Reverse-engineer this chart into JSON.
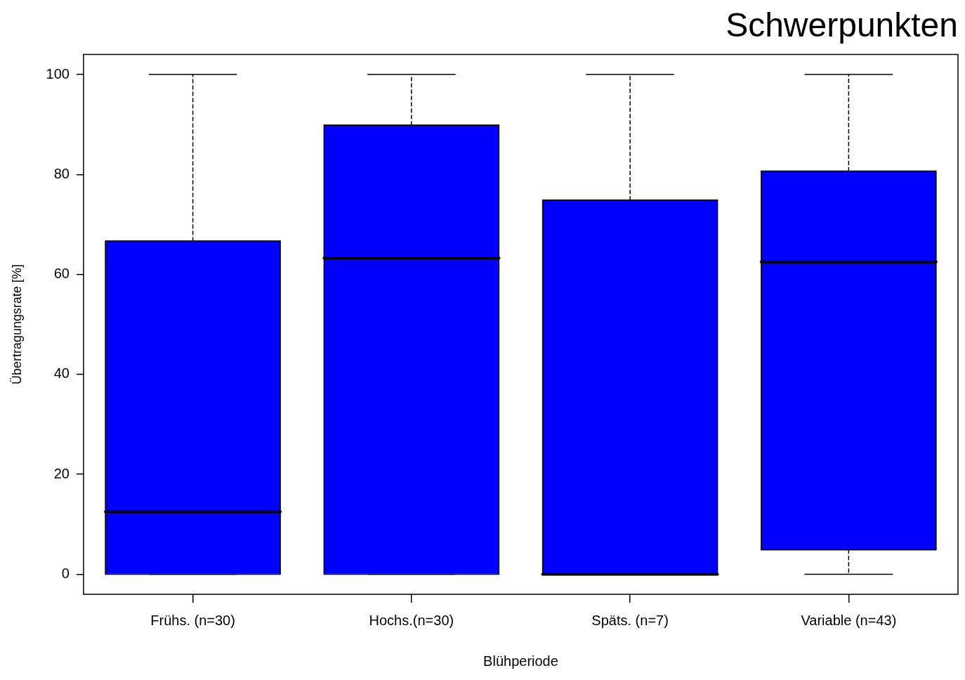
{
  "chart_data": {
    "type": "box",
    "title": "Schwerpunkten",
    "xlabel": "Blühperiode",
    "ylabel": "Übertragungsrate [%]",
    "categories": [
      "Frühs. (n=30)",
      "Hochs.(n=30)",
      "Späts. (n=7)",
      "Variable (n=43)"
    ],
    "color": "#0000ff",
    "boxes": [
      {
        "low": 0,
        "q1": 0,
        "median": 12.5,
        "q3": 66.7,
        "high": 100
      },
      {
        "low": 0,
        "q1": 0,
        "median": 63.3,
        "q3": 89.9,
        "high": 100
      },
      {
        "low": 0,
        "q1": 0,
        "median": 0,
        "q3": 74.9,
        "high": 100
      },
      {
        "low": 0,
        "q1": 4.9,
        "median": 62.5,
        "q3": 80.7,
        "high": 100
      }
    ],
    "ylim": [
      -4,
      104
    ],
    "yticks": [
      0,
      20,
      40,
      60,
      80,
      100
    ],
    "grid": false,
    "legend": false
  }
}
